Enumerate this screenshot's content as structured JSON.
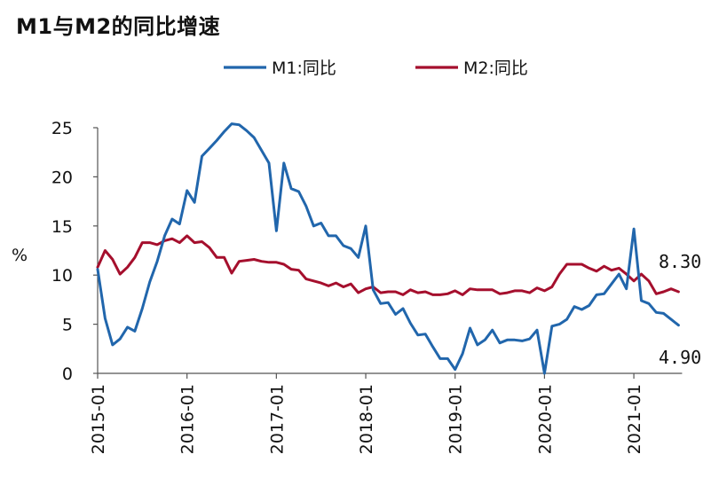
{
  "chart_data": {
    "type": "line",
    "title": "M1与M2的同比增速",
    "ylabel": "%",
    "xlabel": "",
    "ylim": [
      0,
      25
    ],
    "yticks": [
      0,
      5,
      10,
      15,
      20,
      25
    ],
    "ytick_labels": [
      "0",
      "5",
      "10",
      "15",
      "20",
      "25"
    ],
    "grid": false,
    "legend_position": "top-center",
    "x_start": "2015-01",
    "x_ticks": [
      "2015-01",
      "2016-01",
      "2017-01",
      "2018-01",
      "2019-01",
      "2020-01",
      "2021-01"
    ],
    "colors": {
      "M1": "#2166ac",
      "M2": "#a50f2d",
      "axis": "#555555"
    },
    "series": [
      {
        "name": "M1:同比",
        "values": [
          10.6,
          5.6,
          2.9,
          3.5,
          4.7,
          4.3,
          6.6,
          9.3,
          11.4,
          14.0,
          15.7,
          15.2,
          18.6,
          17.4,
          22.1,
          22.9,
          23.7,
          24.6,
          25.4,
          25.3,
          24.7,
          24.0,
          22.7,
          21.4,
          14.5,
          21.4,
          18.8,
          18.5,
          17.0,
          15.0,
          15.3,
          14.0,
          14.0,
          13.0,
          12.7,
          11.8,
          15.0,
          8.5,
          7.1,
          7.2,
          6.0,
          6.6,
          5.1,
          3.9,
          4.0,
          2.7,
          1.5,
          1.5,
          0.4,
          2.0,
          4.6,
          2.9,
          3.4,
          4.4,
          3.1,
          3.4,
          3.4,
          3.3,
          3.5,
          4.4,
          0.0,
          4.8,
          5.0,
          5.5,
          6.8,
          6.5,
          6.9,
          8.0,
          8.1,
          9.1,
          10.1,
          8.6,
          14.7,
          7.4,
          7.1,
          6.2,
          6.1,
          5.5,
          4.9
        ],
        "end_label": "4.90"
      },
      {
        "name": "M2:同比",
        "values": [
          10.8,
          12.5,
          11.6,
          10.1,
          10.8,
          11.8,
          13.3,
          13.3,
          13.1,
          13.5,
          13.7,
          13.3,
          14.0,
          13.3,
          13.4,
          12.8,
          11.8,
          11.8,
          10.2,
          11.4,
          11.5,
          11.6,
          11.4,
          11.3,
          11.3,
          11.1,
          10.6,
          10.5,
          9.6,
          9.4,
          9.2,
          8.9,
          9.2,
          8.8,
          9.1,
          8.2,
          8.6,
          8.8,
          8.2,
          8.3,
          8.3,
          8.0,
          8.5,
          8.2,
          8.3,
          8.0,
          8.0,
          8.1,
          8.4,
          8.0,
          8.6,
          8.5,
          8.5,
          8.5,
          8.1,
          8.2,
          8.4,
          8.4,
          8.2,
          8.7,
          8.4,
          8.8,
          10.1,
          11.1,
          11.1,
          11.1,
          10.7,
          10.4,
          10.9,
          10.5,
          10.7,
          10.1,
          9.4,
          10.1,
          9.4,
          8.1,
          8.3,
          8.6,
          8.3
        ],
        "end_label": "8.30"
      }
    ]
  }
}
